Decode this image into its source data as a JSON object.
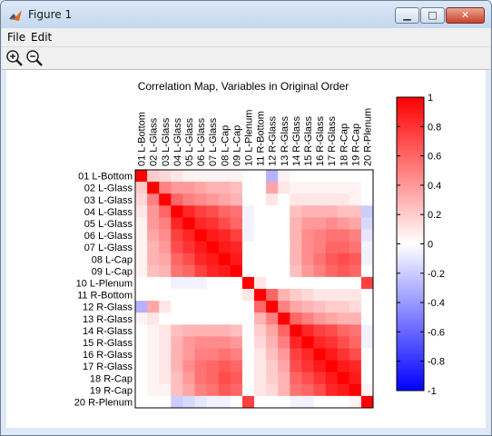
{
  "window": {
    "title": "Figure 1",
    "controls": {
      "minimize": "▁",
      "maximize": "□",
      "close": "✕"
    }
  },
  "menu": {
    "items": [
      "File",
      "Edit"
    ]
  },
  "toolbar": {
    "tools": [
      "zoom-in-icon",
      "zoom-out-icon"
    ]
  },
  "chart_data": {
    "type": "heatmap",
    "title": "Correlation Map, Variables in Original Order",
    "labels": [
      "01 L-Bottom",
      "02 L-Glass",
      "03 L-Glass",
      "04 L-Glass",
      "05 L-Glass",
      "06 L-Glass",
      "07 L-Glass",
      "08 L-Cap",
      "09 L-Cap",
      "10 L-Plenum",
      "11 R-Bottom",
      "12 R-Glass",
      "13 R-Glass",
      "14 R-Glass",
      "15 R-Glass",
      "16 R-Glass",
      "17 R-Glass",
      "18 R-Cap",
      "19 R-Cap",
      "20 R-Plenum"
    ],
    "colorbar": {
      "range": [
        -1,
        1
      ],
      "ticks": [
        "1",
        "0.8",
        "0.6",
        "0.4",
        "0.2",
        "0",
        "-0.2",
        "-0.4",
        "-0.6",
        "-0.8",
        "-1"
      ]
    },
    "colormap": {
      "positive": "#ff0000",
      "zero": "#ffffff",
      "negative": "#0000ff"
    },
    "matrix": [
      [
        1.0,
        0.2,
        0.15,
        0.1,
        0.05,
        0.05,
        0.05,
        0.05,
        0.05,
        0.0,
        0.0,
        -0.3,
        0.05,
        0.0,
        0.0,
        0.0,
        0.0,
        0.0,
        0.0,
        0.0
      ],
      [
        0.2,
        1.0,
        0.5,
        0.4,
        0.4,
        0.35,
        0.3,
        0.3,
        0.25,
        0.0,
        0.0,
        0.35,
        0.1,
        0.05,
        0.05,
        0.05,
        0.05,
        0.05,
        0.05,
        0.0
      ],
      [
        0.15,
        0.5,
        1.0,
        0.6,
        0.5,
        0.45,
        0.4,
        0.35,
        0.3,
        0.0,
        0.0,
        0.1,
        0.0,
        0.1,
        0.1,
        0.1,
        0.1,
        0.1,
        0.05,
        0.0
      ],
      [
        0.1,
        0.4,
        0.6,
        1.0,
        0.85,
        0.75,
        0.7,
        0.6,
        0.55,
        -0.05,
        0.0,
        0.0,
        0.0,
        0.25,
        0.3,
        0.3,
        0.3,
        0.25,
        0.25,
        -0.2
      ],
      [
        0.05,
        0.4,
        0.5,
        0.85,
        1.0,
        0.85,
        0.8,
        0.7,
        0.6,
        -0.05,
        0.0,
        0.0,
        0.0,
        0.3,
        0.4,
        0.4,
        0.45,
        0.4,
        0.35,
        -0.15
      ],
      [
        0.05,
        0.35,
        0.45,
        0.75,
        0.85,
        1.0,
        0.9,
        0.85,
        0.75,
        -0.05,
        0.0,
        0.0,
        0.0,
        0.3,
        0.45,
        0.5,
        0.55,
        0.55,
        0.5,
        -0.1
      ],
      [
        0.05,
        0.3,
        0.4,
        0.7,
        0.8,
        0.9,
        1.0,
        0.9,
        0.85,
        0.0,
        0.0,
        0.0,
        0.0,
        0.3,
        0.45,
        0.5,
        0.6,
        0.6,
        0.55,
        -0.05
      ],
      [
        0.05,
        0.3,
        0.35,
        0.6,
        0.7,
        0.85,
        0.9,
        1.0,
        0.9,
        0.0,
        0.0,
        0.0,
        0.0,
        0.3,
        0.45,
        0.55,
        0.65,
        0.7,
        0.65,
        -0.05
      ],
      [
        0.05,
        0.25,
        0.3,
        0.55,
        0.6,
        0.75,
        0.85,
        0.9,
        1.0,
        0.0,
        0.0,
        0.0,
        0.0,
        0.25,
        0.4,
        0.5,
        0.6,
        0.65,
        0.6,
        0.0
      ],
      [
        0.0,
        0.0,
        0.0,
        -0.05,
        -0.05,
        -0.05,
        0.0,
        0.0,
        0.0,
        1.0,
        0.1,
        0.0,
        0.0,
        0.0,
        0.0,
        0.0,
        0.0,
        0.0,
        0.0,
        0.75
      ],
      [
        0.0,
        0.0,
        0.0,
        0.0,
        0.0,
        0.0,
        0.0,
        0.0,
        0.0,
        0.1,
        1.0,
        0.6,
        0.3,
        0.2,
        0.15,
        0.1,
        0.1,
        0.1,
        0.1,
        0.0
      ],
      [
        -0.3,
        0.35,
        0.1,
        0.0,
        0.0,
        0.0,
        0.0,
        0.0,
        0.0,
        0.0,
        0.6,
        1.0,
        0.5,
        0.35,
        0.3,
        0.25,
        0.2,
        0.2,
        0.15,
        0.0
      ],
      [
        0.05,
        0.1,
        0.0,
        0.0,
        0.0,
        0.0,
        0.0,
        0.0,
        0.0,
        0.0,
        0.3,
        0.5,
        1.0,
        0.6,
        0.5,
        0.4,
        0.35,
        0.3,
        0.3,
        0.0
      ],
      [
        0.0,
        0.05,
        0.1,
        0.25,
        0.3,
        0.3,
        0.3,
        0.3,
        0.25,
        0.0,
        0.2,
        0.35,
        0.6,
        1.0,
        0.85,
        0.75,
        0.7,
        0.6,
        0.55,
        -0.05
      ],
      [
        0.0,
        0.05,
        0.1,
        0.3,
        0.4,
        0.45,
        0.45,
        0.45,
        0.4,
        0.0,
        0.15,
        0.3,
        0.5,
        0.85,
        1.0,
        0.85,
        0.8,
        0.7,
        0.6,
        -0.05
      ],
      [
        0.0,
        0.05,
        0.1,
        0.3,
        0.4,
        0.5,
        0.5,
        0.55,
        0.5,
        0.0,
        0.1,
        0.25,
        0.4,
        0.75,
        0.85,
        1.0,
        0.9,
        0.8,
        0.7,
        0.0
      ],
      [
        0.0,
        0.05,
        0.1,
        0.3,
        0.45,
        0.55,
        0.6,
        0.65,
        0.6,
        0.0,
        0.1,
        0.2,
        0.35,
        0.7,
        0.8,
        0.9,
        1.0,
        0.9,
        0.85,
        0.0
      ],
      [
        0.0,
        0.05,
        0.1,
        0.25,
        0.4,
        0.55,
        0.6,
        0.7,
        0.65,
        0.0,
        0.1,
        0.2,
        0.3,
        0.6,
        0.7,
        0.8,
        0.9,
        1.0,
        0.9,
        0.0
      ],
      [
        0.0,
        0.05,
        0.05,
        0.25,
        0.35,
        0.5,
        0.55,
        0.65,
        0.6,
        0.0,
        0.1,
        0.15,
        0.3,
        0.55,
        0.6,
        0.7,
        0.85,
        0.9,
        1.0,
        0.05
      ],
      [
        0.0,
        0.0,
        0.0,
        -0.2,
        -0.15,
        -0.1,
        -0.05,
        -0.05,
        0.0,
        0.75,
        0.0,
        0.0,
        0.0,
        -0.05,
        -0.05,
        0.0,
        0.0,
        0.0,
        0.05,
        1.0
      ]
    ]
  }
}
